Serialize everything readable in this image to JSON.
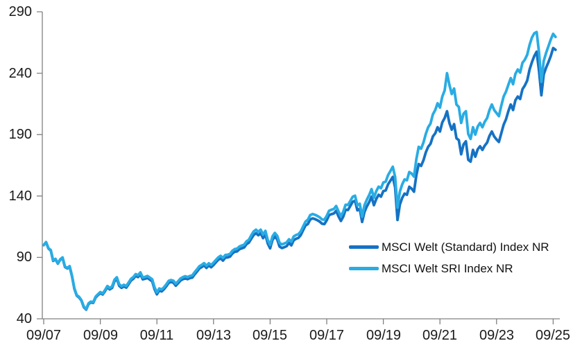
{
  "chart_data": {
    "type": "line",
    "title": "",
    "xlabel": "",
    "ylabel": "",
    "grid": false,
    "background": "#ffffff",
    "axis_color": "#808080",
    "tick_label_color": "#1a1a1a",
    "ylim": [
      40,
      290
    ],
    "y_ticks": [
      40,
      90,
      140,
      190,
      240,
      290
    ],
    "x_tick_labels": [
      "09/07",
      "09/09",
      "09/11",
      "09/13",
      "09/15",
      "09/17",
      "09/19",
      "09/21",
      "09/23",
      "09/25"
    ],
    "x_tick_month_indices": [
      0,
      24,
      48,
      72,
      96,
      120,
      144,
      168,
      192,
      216
    ],
    "x_unit": "month",
    "x_start": "09/2007",
    "x_end": "10/2025",
    "legend_position": "inside-lower-right",
    "series": [
      {
        "name": "MSCI Welt (Standard) Index NR",
        "color": "#1572c4",
        "values": [
          100,
          102.3,
          97.2,
          95.6,
          87.2,
          88.4,
          84.9,
          88.1,
          89.5,
          82.2,
          81.0,
          82.4,
          74.6,
          64.4,
          58.9,
          57.4,
          54.8,
          49.5,
          47.5,
          52.0,
          53.4,
          53.0,
          57.3,
          59.3,
          61.0,
          59.8,
          62.5,
          65.8,
          63.9,
          65.2,
          70.5,
          72.5,
          66.9,
          65.2,
          66.4,
          65.4,
          68.2,
          71.2,
          72.6,
          75.0,
          74.0,
          76.3,
          72.1,
          72.6,
          73.3,
          71.9,
          70.6,
          64.1,
          59.9,
          63.1,
          62.3,
          64.1,
          66.5,
          69.3,
          70.0,
          69.4,
          67.0,
          69.0,
          71.2,
          72.3,
          73.0,
          72.3,
          73.2,
          73.6,
          76.2,
          78.5,
          81.0,
          82.1,
          83.5,
          81.4,
          83.4,
          82.0,
          83.8,
          86.0,
          88.1,
          89.4,
          87.4,
          89.8,
          90.0,
          90.7,
          93.2,
          94.6,
          94.9,
          96.7,
          97.4,
          98.1,
          100.8,
          102.1,
          105.2,
          108.2,
          109.7,
          108.0,
          109.7,
          105.7,
          108.7,
          101.3,
          97.4,
          104.3,
          107.0,
          104.7,
          98.8,
          97.6,
          98.3,
          99.2,
          101.8,
          99.8,
          104.0,
          105.2,
          105.9,
          108.2,
          112.2,
          116.0,
          117.2,
          120.9,
          121.8,
          121.2,
          120.3,
          119.2,
          117.4,
          117.1,
          120.2,
          124.4,
          125.2,
          125.8,
          127.9,
          123.4,
          119.7,
          123.2,
          128.9,
          128.6,
          131.9,
          135.3,
          136.1,
          128.3,
          129.6,
          118.9,
          127.0,
          131.5,
          135.0,
          139.5,
          132.5,
          137.5,
          141.0,
          139.5,
          144.0,
          144.5,
          149.5,
          152.5,
          155.5,
          147.0,
          120.5,
          133.0,
          138.5,
          142.0,
          141.0,
          147.5,
          146.0,
          143.5,
          157.0,
          166.0,
          164.5,
          169.0,
          175.5,
          180.0,
          182.5,
          188.5,
          191.0,
          196.0,
          192.5,
          200.0,
          203.5,
          209.0,
          199.5,
          194.0,
          198.5,
          187.0,
          185.5,
          174.0,
          182.0,
          184.5,
          169.5,
          168.0,
          177.5,
          172.0,
          178.0,
          180.5,
          177.5,
          181.0,
          183.5,
          189.0,
          192.5,
          188.5,
          186.0,
          184.0,
          191.0,
          198.0,
          202.5,
          209.0,
          214.5,
          210.0,
          218.0,
          221.0,
          219.0,
          227.0,
          230.0,
          234.0,
          243.0,
          249.0,
          254.0,
          257.5,
          242.0,
          222.0,
          239.0,
          244.5,
          249.0,
          254.0,
          260.5,
          259.0
        ]
      },
      {
        "name": "MSCI Welt SRI Index NR",
        "color": "#29ace3",
        "values": [
          100.0,
          102.5,
          97.5,
          96.0,
          87.6,
          88.8,
          85.2,
          88.5,
          90.0,
          82.6,
          81.4,
          82.9,
          75.1,
          64.9,
          59.3,
          57.9,
          55.2,
          50.0,
          48.0,
          52.6,
          54.0,
          53.6,
          58.0,
          60.0,
          61.8,
          60.6,
          63.4,
          66.7,
          65.1,
          66.4,
          71.8,
          73.8,
          68.2,
          66.5,
          67.7,
          66.7,
          69.5,
          72.5,
          74.0,
          76.4,
          75.5,
          77.8,
          73.6,
          74.2,
          74.9,
          73.5,
          72.2,
          65.7,
          61.5,
          64.7,
          63.9,
          65.7,
          68.1,
          70.9,
          71.6,
          71.0,
          68.6,
          70.6,
          72.8,
          73.9,
          74.7,
          74.0,
          74.9,
          75.3,
          78.0,
          80.3,
          82.8,
          83.9,
          85.3,
          83.2,
          85.2,
          83.9,
          85.7,
          87.9,
          90.0,
          91.3,
          89.6,
          92.0,
          92.2,
          92.9,
          95.4,
          96.8,
          97.1,
          98.9,
          99.7,
          100.4,
          103.1,
          104.4,
          108.0,
          111.1,
          112.6,
          110.9,
          112.6,
          108.5,
          111.6,
          104.1,
          100.2,
          107.1,
          109.9,
          107.6,
          101.8,
          100.6,
          101.3,
          102.2,
          104.8,
          102.8,
          107.1,
          108.2,
          108.9,
          111.2,
          115.2,
          119.1,
          120.7,
          124.4,
          125.3,
          124.7,
          123.8,
          122.7,
          120.9,
          120.7,
          123.8,
          128.0,
          128.8,
          129.4,
          131.9,
          127.4,
          123.7,
          127.2,
          132.9,
          132.7,
          136.0,
          139.4,
          140.2,
          132.4,
          133.7,
          123.1,
          132.5,
          137.0,
          140.8,
          145.6,
          138.6,
          143.9,
          147.6,
          146.3,
          151.0,
          151.7,
          157.0,
          160.3,
          163.8,
          155.5,
          130.5,
          143.5,
          149.5,
          153.5,
          152.8,
          159.5,
          158.2,
          155.8,
          170.0,
          180.0,
          178.5,
          183.5,
          190.5,
          196.0,
          199.0,
          206.5,
          210.0,
          215.5,
          212.0,
          221.0,
          226.0,
          240.0,
          230.5,
          223.0,
          227.5,
          214.5,
          212.5,
          199.5,
          207.0,
          209.0,
          190.5,
          186.5,
          196.0,
          190.0,
          196.5,
          199.5,
          196.0,
          200.5,
          203.5,
          210.0,
          214.5,
          210.0,
          207.5,
          205.0,
          213.5,
          221.0,
          225.0,
          230.5,
          236.0,
          231.0,
          239.5,
          243.0,
          240.5,
          248.5,
          251.0,
          255.0,
          263.0,
          269.0,
          272.5,
          273.5,
          257.0,
          233.0,
          250.0,
          256.5,
          262.0,
          267.5,
          272.0,
          269.5
        ]
      }
    ]
  },
  "legend": {
    "items": [
      {
        "label": "MSCI Welt (Standard) Index NR"
      },
      {
        "label": "MSCI Welt SRI Index NR"
      }
    ]
  }
}
